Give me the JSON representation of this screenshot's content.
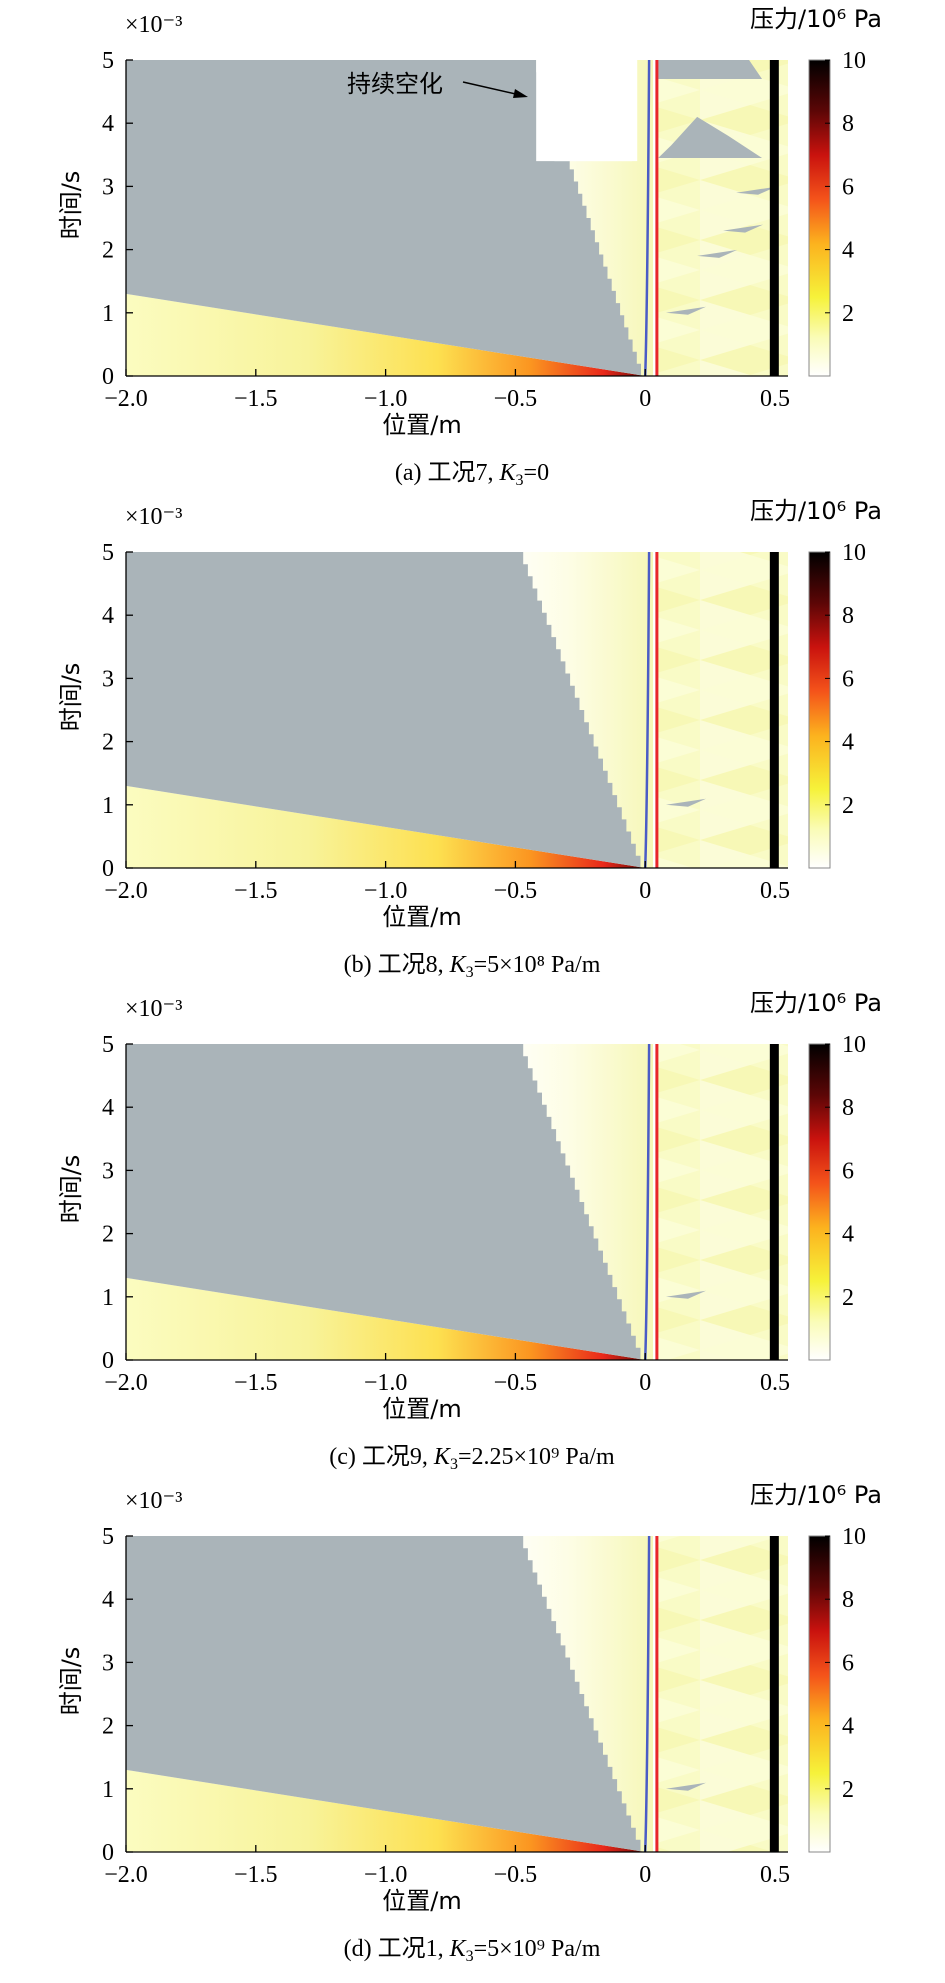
{
  "figure": {
    "x_label": "位置/m",
    "y_label": "时间/s",
    "y_multiplier": "×10⁻³",
    "colorbar_label": "压力/10⁶ Pa",
    "x_ticks": [
      "−2.0",
      "−1.5",
      "−1.0",
      "−0.5",
      "0",
      "0.5"
    ],
    "y_ticks": [
      "0",
      "1",
      "2",
      "3",
      "4",
      "5"
    ],
    "colorbar_ticks": [
      "10",
      "8",
      "6",
      "4",
      "2"
    ]
  },
  "panels": [
    {
      "caption_prefix": "(a) 工况7, ",
      "caption_k": "K",
      "caption_sub": "3",
      "caption_value": "=0",
      "annotation": "持续空化"
    },
    {
      "caption_prefix": "(b) 工况8, ",
      "caption_k": "K",
      "caption_sub": "3",
      "caption_value": "=5×10⁸ Pa/m"
    },
    {
      "caption_prefix": "(c) 工况9, ",
      "caption_k": "K",
      "caption_sub": "3",
      "caption_value": "=2.25×10⁹ Pa/m"
    },
    {
      "caption_prefix": "(d) 工况1, ",
      "caption_k": "K",
      "caption_sub": "3",
      "caption_value": "=5×10⁹ Pa/m"
    }
  ],
  "colors": {
    "cavitation": "#aab4b9",
    "blue_line": "#4a5cc6",
    "red_line": "#e8252b",
    "black_bar": "#000000"
  },
  "chart_data": [
    {
      "type": "heatmap",
      "title": "(a) 工况7, K3=0",
      "xlabel": "位置/m",
      "ylabel": "时间/s",
      "y_scale": "×10⁻³",
      "xlim": [
        -2.0,
        0.55
      ],
      "ylim": [
        0,
        5
      ],
      "x_ticks": [
        -2.0,
        -1.5,
        -1.0,
        -0.5,
        0,
        0.5
      ],
      "y_ticks": [
        0,
        1,
        2,
        3,
        4,
        5
      ],
      "colorbar": {
        "label": "压力/10⁶ Pa",
        "range": [
          0,
          10
        ],
        "ticks": [
          2,
          4,
          6,
          8,
          10
        ]
      },
      "cavitation_front": [
        [
          0.0,
          0.0
        ],
        [
          -0.05,
          0.5
        ],
        [
          -0.15,
          1.5
        ],
        [
          -0.25,
          2.5
        ],
        [
          -0.35,
          3.5
        ],
        [
          -0.42,
          5.0
        ]
      ],
      "persistent_cavitation": {
        "x_range": [
          -0.42,
          -0.05
        ],
        "t_start": 3.4,
        "t_end": 5.0
      },
      "upstream_wedge_boundary": [
        [
          -2.0,
          1.3
        ],
        [
          0.0,
          0.0
        ]
      ]
    },
    {
      "type": "heatmap",
      "title": "(b) 工况8, K3=5×10⁸ Pa/m",
      "xlabel": "位置/m",
      "ylabel": "时间/s",
      "y_scale": "×10⁻³",
      "xlim": [
        -2.0,
        0.55
      ],
      "ylim": [
        0,
        5
      ],
      "colorbar": {
        "label": "压力/10⁶ Pa",
        "range": [
          0,
          10
        ],
        "ticks": [
          2,
          4,
          6,
          8,
          10
        ]
      },
      "cavitation_front": [
        [
          0.0,
          0.0
        ],
        [
          -0.05,
          0.5
        ],
        [
          -0.15,
          1.5
        ],
        [
          -0.25,
          2.5
        ],
        [
          -0.35,
          3.5
        ],
        [
          -0.47,
          5.0
        ]
      ],
      "upstream_wedge_boundary": [
        [
          -2.0,
          1.3
        ],
        [
          0.0,
          0.0
        ]
      ]
    },
    {
      "type": "heatmap",
      "title": "(c) 工况9, K3=2.25×10⁹ Pa/m",
      "xlabel": "位置/m",
      "ylabel": "时间/s",
      "y_scale": "×10⁻³",
      "xlim": [
        -2.0,
        0.55
      ],
      "ylim": [
        0,
        5
      ],
      "colorbar": {
        "label": "压力/10⁶ Pa",
        "range": [
          0,
          10
        ],
        "ticks": [
          2,
          4,
          6,
          8,
          10
        ]
      },
      "cavitation_front": [
        [
          0.0,
          0.0
        ],
        [
          -0.05,
          0.5
        ],
        [
          -0.15,
          1.5
        ],
        [
          -0.25,
          2.5
        ],
        [
          -0.35,
          3.5
        ],
        [
          -0.47,
          5.0
        ]
      ],
      "upstream_wedge_boundary": [
        [
          -2.0,
          1.3
        ],
        [
          0.0,
          0.0
        ]
      ]
    },
    {
      "type": "heatmap",
      "title": "(d) 工况1, K3=5×10⁹ Pa/m",
      "xlabel": "位置/m",
      "ylabel": "时间/s",
      "y_scale": "×10⁻³",
      "xlim": [
        -2.0,
        0.55
      ],
      "ylim": [
        0,
        5
      ],
      "colorbar": {
        "label": "压力/10⁶ Pa",
        "range": [
          0,
          10
        ],
        "ticks": [
          2,
          4,
          6,
          8,
          10
        ]
      },
      "cavitation_front": [
        [
          0.0,
          0.0
        ],
        [
          -0.05,
          0.5
        ],
        [
          -0.15,
          1.5
        ],
        [
          -0.25,
          2.5
        ],
        [
          -0.35,
          3.5
        ],
        [
          -0.47,
          5.0
        ]
      ],
      "upstream_wedge_boundary": [
        [
          -2.0,
          1.3
        ],
        [
          0.0,
          0.0
        ]
      ]
    }
  ]
}
